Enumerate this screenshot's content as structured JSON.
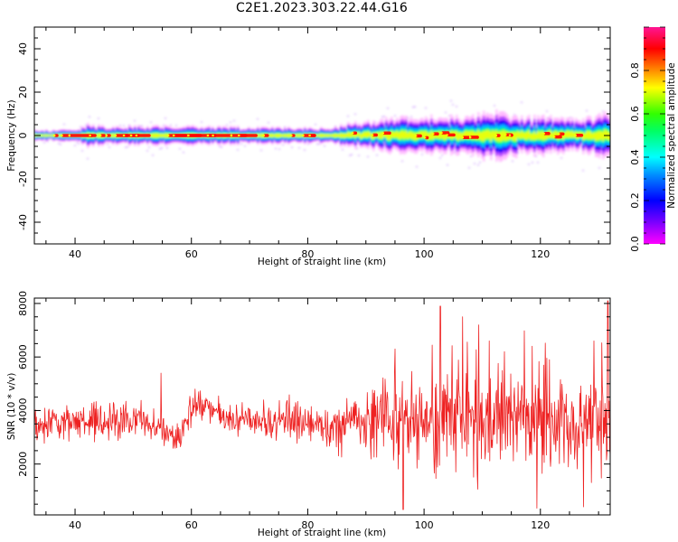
{
  "title": "C2E1.2023.303.22.44.G16",
  "colors": {
    "signal_line": "#ee2222",
    "colormap": [
      "#ff00ff",
      "#7a00ff",
      "#0000ff",
      "#00c8ff",
      "#00ff64",
      "#32ff00",
      "#ffff00",
      "#ff8c00",
      "#ff0000",
      "#ff1493"
    ]
  },
  "chart_data": [
    {
      "type": "heatmap",
      "xlabel": "Height of straight line (km)",
      "ylabel": "Frequency (Hz)",
      "xlim": [
        33,
        132
      ],
      "ylim": [
        -50,
        50
      ],
      "xticks": [
        40,
        60,
        80,
        100,
        120
      ],
      "yticks": [
        40,
        20,
        0,
        -20,
        -40
      ],
      "grid": false,
      "colorbar": {
        "label": "Normalized spectral amplitude",
        "range": [
          0.0,
          1.0
        ],
        "ticks": [
          "0.0",
          "0.2",
          "0.4",
          "0.6",
          "0.8"
        ]
      },
      "band_center_hz": 0,
      "band_halfwidth_hz": [
        [
          33,
          1.5
        ],
        [
          40,
          1.5
        ],
        [
          42,
          3
        ],
        [
          45,
          2.5
        ],
        [
          60,
          2.5
        ],
        [
          84,
          2
        ],
        [
          86,
          3
        ],
        [
          95,
          4.5
        ],
        [
          105,
          5
        ],
        [
          111,
          7
        ],
        [
          115,
          5
        ],
        [
          120,
          5
        ],
        [
          126,
          4
        ],
        [
          132,
          6
        ]
      ]
    },
    {
      "type": "line",
      "xlabel": "Height of straight line (km)",
      "ylabel": "SNR (10 * v/v)",
      "xlim": [
        33,
        132
      ],
      "ylim": [
        100,
        8200
      ],
      "xticks": [
        40,
        60,
        80,
        100,
        120
      ],
      "yticks": [
        2000,
        4000,
        6000,
        8000
      ],
      "grid": false,
      "series": [
        {
          "envelope": [
            {
              "x": 33,
              "mean": 3500,
              "spread": 600
            },
            {
              "x": 45,
              "mean": 3600,
              "spread": 700
            },
            {
              "x": 52,
              "mean": 3600,
              "spread": 650
            },
            {
              "x": 55,
              "mean": 3300,
              "spread": 500
            },
            {
              "x": 58,
              "mean": 2900,
              "spread": 450
            },
            {
              "x": 60,
              "mean": 4000,
              "spread": 500
            },
            {
              "x": 62,
              "mean": 4200,
              "spread": 450
            },
            {
              "x": 65,
              "mean": 3700,
              "spread": 550
            },
            {
              "x": 75,
              "mean": 3700,
              "spread": 700
            },
            {
              "x": 85,
              "mean": 3400,
              "spread": 700
            },
            {
              "x": 90,
              "mean": 3500,
              "spread": 1000
            },
            {
              "x": 93,
              "mean": 3800,
              "spread": 1400
            },
            {
              "x": 97,
              "mean": 3600,
              "spread": 1700
            },
            {
              "x": 103,
              "mean": 3700,
              "spread": 2000
            },
            {
              "x": 110,
              "mean": 3800,
              "spread": 2000
            },
            {
              "x": 120,
              "mean": 3800,
              "spread": 2000
            },
            {
              "x": 128,
              "mean": 3600,
              "spread": 2000
            },
            {
              "x": 132,
              "mean": 3700,
              "spread": 2200
            }
          ],
          "peaks": [
            {
              "x": 95,
              "y": 6300
            },
            {
              "x": 102.8,
              "y": 7900
            },
            {
              "x": 106.6,
              "y": 7500
            },
            {
              "x": 109.4,
              "y": 7200
            },
            {
              "x": 111.2,
              "y": 6600
            },
            {
              "x": 113.8,
              "y": 6200
            },
            {
              "x": 118.6,
              "y": 6400
            },
            {
              "x": 121.6,
              "y": 5900
            },
            {
              "x": 129.2,
              "y": 6600
            },
            {
              "x": 131.6,
              "y": 8100
            },
            {
              "x": 54.8,
              "y": 5400
            },
            {
              "x": 60.6,
              "y": 4800
            },
            {
              "x": 96.4,
              "y": 300
            },
            {
              "x": 119.4,
              "y": 350
            },
            {
              "x": 127.4,
              "y": 400
            }
          ]
        }
      ]
    }
  ]
}
